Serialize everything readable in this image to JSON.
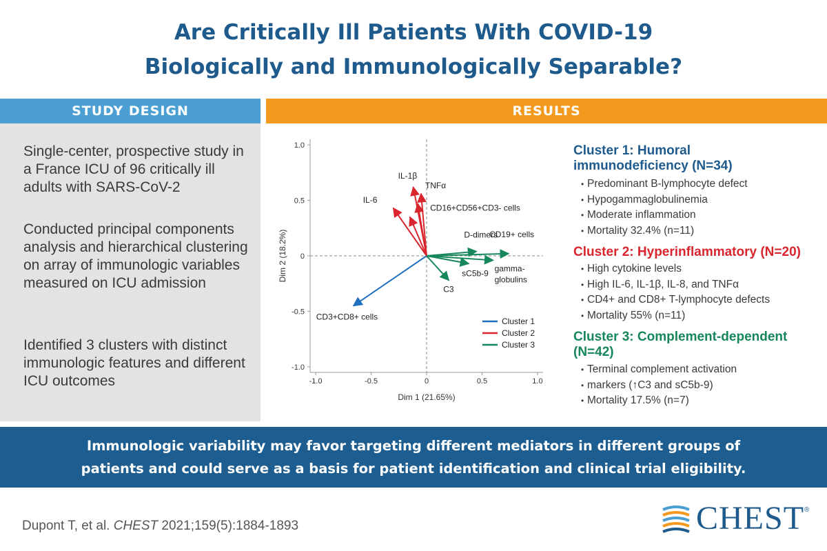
{
  "title": {
    "line1": "Are Critically Ill Patients With COVID-19",
    "line2": "Biologically and Immunologically Separable?"
  },
  "study_design": {
    "header": "STUDY DESIGN",
    "paragraphs": [
      "Single-center, prospective study in a France ICU of 96 critically ill adults with SARS-CoV-2",
      "Conducted principal components analysis and hierarchical clustering on array of immunologic variables measured on ICU admission",
      "Identified 3 clusters with distinct immunologic features and different ICU outcomes"
    ]
  },
  "results": {
    "header": "RESULTS",
    "clusters": [
      {
        "title_line1": "Cluster 1: Humoral",
        "title_line2": "immunodeficiency (N=34)",
        "bullets": [
          "Predominant B-lymphocyte defect",
          "Hypogammaglobulinemia",
          "Moderate inflammation",
          "Mortality 32.4% (n=11)"
        ]
      },
      {
        "title_line1": "Cluster 2: Hyperinflammatory (N=20)",
        "bullets": [
          "High cytokine levels",
          "High IL-6, IL-1β, IL-8, and TNFα",
          "CD4+ and CD8+ T-lymphocyte defects",
          "Mortality 55% (n=11)"
        ]
      },
      {
        "title_line1": "Cluster 3: Complement-dependent",
        "title_line2": "(N=42)",
        "bullets": [
          "Terminal complement activation",
          "markers (↑C3 and sC5b-9)",
          "Mortality 17.5% (n=7)"
        ]
      }
    ]
  },
  "chart_data": {
    "type": "scatter",
    "title": "",
    "xlabel": "Dim 1 (21.65%)",
    "ylabel": "Dim 2 (18.2%)",
    "xlim": [
      -1.05,
      1.05
    ],
    "ylim": [
      -1.05,
      1.05
    ],
    "x_ticks": [
      "-1.0",
      "-0.5",
      "0",
      "0.5",
      "1.0"
    ],
    "x_tick_values": [
      -1.0,
      -0.5,
      0,
      0.5,
      1.0
    ],
    "y_ticks": [
      "1.0",
      "0.5",
      "0",
      "-0.5",
      "-1.0"
    ],
    "y_tick_values": [
      1.0,
      0.5,
      0,
      -0.5,
      -1.0
    ],
    "legend": [
      "Cluster 1",
      "Cluster 2",
      "Cluster 3"
    ],
    "colors": {
      "cluster1": "#1f6fc0",
      "cluster2": "#d9262e",
      "cluster3": "#16875a"
    },
    "vectors": [
      {
        "label": "CD3+CD8+ cells",
        "x": -0.66,
        "y": -0.45,
        "cluster": 1
      },
      {
        "label": "IL-1β",
        "x": -0.12,
        "y": 0.62,
        "cluster": 2
      },
      {
        "label": "IL-6",
        "x": -0.3,
        "y": 0.43,
        "cluster": 2
      },
      {
        "label": "TNFα",
        "x": -0.05,
        "y": 0.56,
        "cluster": 2
      },
      {
        "label": "CD16+CD56+CD3- cells",
        "x": -0.08,
        "y": 0.47,
        "cluster": 2
      },
      {
        "label": "",
        "x": -0.15,
        "y": 0.35,
        "cluster": 2
      },
      {
        "label": "D-dimers",
        "x": 0.45,
        "y": 0.04,
        "cluster": 3
      },
      {
        "label": "CD19+ cells",
        "x": 0.74,
        "y": 0.02,
        "cluster": 3
      },
      {
        "label": "sC5b-9",
        "x": 0.38,
        "y": -0.07,
        "cluster": 3
      },
      {
        "label": "gamma-",
        "x": 0.6,
        "y": -0.04,
        "cluster": 3
      },
      {
        "label": "globulins",
        "x": 0.6,
        "y": -0.04,
        "cluster": 3
      },
      {
        "label": "C3",
        "x": 0.2,
        "y": -0.22,
        "cluster": 3
      }
    ]
  },
  "banner": {
    "line1": "Immunologic variability may favor targeting different mediators in different groups of",
    "line2": "patients and could serve as a basis for patient identification and clinical trial eligibility."
  },
  "citation": {
    "authors": "Dupont T, et al.",
    "journal": "CHEST",
    "ref": "2021;159(5):1884-1893"
  },
  "logo": {
    "text": "CHEST",
    "mark": "®"
  }
}
